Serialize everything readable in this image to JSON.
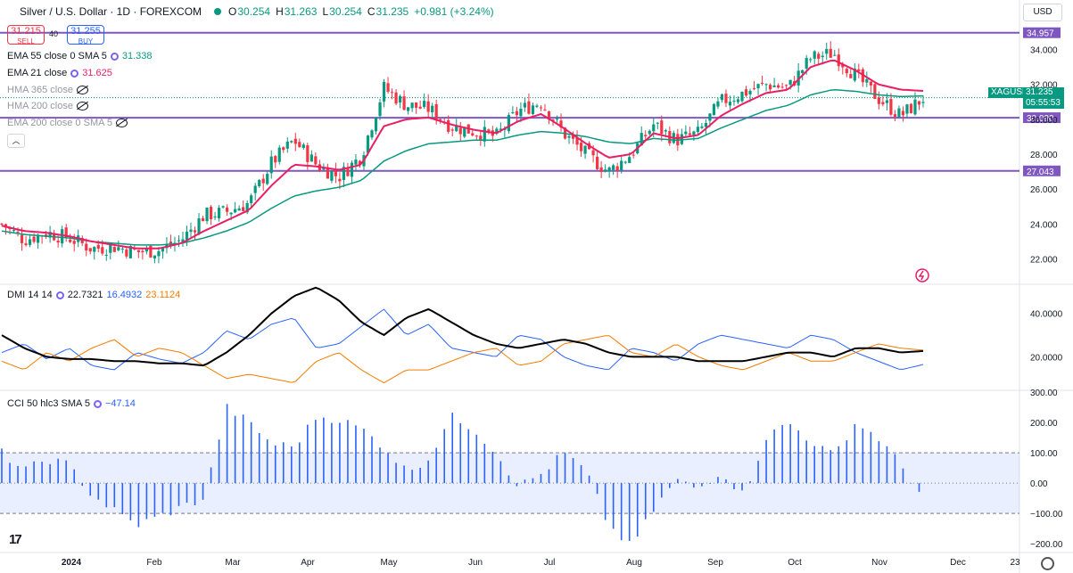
{
  "header": {
    "title": "Silver / U.S. Dollar · 1D · FOREXCOM",
    "open_label": "O",
    "open": "30.254",
    "high_label": "H",
    "high": "31.263",
    "low_label": "L",
    "low": "30.254",
    "close_label": "C",
    "close": "31.235",
    "change": "+0.981 (+3.24%)"
  },
  "trade": {
    "sell_price": "31.215",
    "sell_label": "SELL",
    "spread": "40",
    "buy_price": "31.255",
    "buy_label": "BUY"
  },
  "indicators": [
    {
      "label": "EMA 55 close 0 SMA 5",
      "value": "31.338",
      "color": "#089981",
      "visible": true
    },
    {
      "label": "EMA 21 close",
      "value": "31.625",
      "color": "#e91e63",
      "visible": true
    },
    {
      "label": "HMA 365 close",
      "value": "",
      "visible": false
    },
    {
      "label": "HMA 200 close",
      "value": "",
      "visible": false
    },
    {
      "label": "EMA 200 close 0 SMA 5",
      "value": "",
      "visible": false
    }
  ],
  "dmi": {
    "label": "DMI 14 14",
    "v1": "22.7321",
    "v2": "16.4932",
    "v3": "23.1124"
  },
  "cci": {
    "label": "CCI 50 hlc3 SMA 5",
    "value": "−47.14"
  },
  "currency": "USD",
  "symbol_tag": "XAGUSD",
  "price_tag": "31.235",
  "countdown": "05:55:53",
  "colors": {
    "up": "#089981",
    "down": "#f23645",
    "level": "#7e57c2",
    "ema21": "#e91e63",
    "ema55": "#089981",
    "dmi_plus": "#2962ff",
    "dmi_minus": "#f57c00",
    "adx": "#000000",
    "cci": "#2962ff"
  },
  "icons": {
    "logo": "tradingview-logo",
    "settings": "gear-icon",
    "collapse": "chevron-up-icon",
    "alert": "lightning-icon"
  },
  "chart_data": [
    {
      "type": "candlestick",
      "title": "Silver / U.S. Dollar · 1D · FOREXCOM",
      "x_labels": [
        "2024",
        "Feb",
        "Mar",
        "Apr",
        "May",
        "Jun",
        "Jul",
        "Aug",
        "Sep",
        "Oct",
        "Nov",
        "Dec",
        "23"
      ],
      "y_ticks": [
        "22.000",
        "24.000",
        "26.000",
        "28.000",
        "30.000",
        "32.000",
        "34.000"
      ],
      "ylim": [
        20.6,
        35.3
      ],
      "price_levels": [
        {
          "value": 34.957,
          "label": "34.957"
        },
        {
          "value": 30.09,
          "label": "30.090"
        },
        {
          "value": 27.043,
          "label": "27.043"
        }
      ],
      "last_price": 31.235,
      "close_series_weekly": [
        24.0,
        23.1,
        23.5,
        23.2,
        22.6,
        22.7,
        22.4,
        22.5,
        23.1,
        24.5,
        24.7,
        25.2,
        27.5,
        28.8,
        27.4,
        26.7,
        27.9,
        31.8,
        30.8,
        30.6,
        29.6,
        29.3,
        29.0,
        30.5,
        31.0,
        29.2,
        28.0,
        27.0,
        28.0,
        29.7,
        28.8,
        29.2,
        31.0,
        31.5,
        32.0,
        31.8,
        33.5,
        33.8,
        32.5,
        31.2,
        30.2,
        31.2
      ],
      "series": [
        {
          "name": "EMA 55 close 0 SMA 5",
          "values_weekly": [
            23.6,
            23.4,
            23.3,
            23.2,
            23.0,
            22.9,
            22.8,
            22.8,
            22.9,
            23.2,
            23.6,
            24.1,
            24.9,
            25.6,
            25.9,
            26.1,
            26.5,
            27.6,
            28.2,
            28.6,
            28.7,
            28.8,
            28.8,
            29.1,
            29.3,
            29.2,
            29.0,
            28.7,
            28.6,
            28.9,
            28.8,
            28.9,
            29.5,
            30.0,
            30.5,
            30.8,
            31.4,
            31.7,
            31.6,
            31.4,
            31.3,
            31.34
          ]
        },
        {
          "name": "EMA 21 close",
          "values_weekly": [
            23.9,
            23.6,
            23.5,
            23.3,
            23.0,
            22.8,
            22.6,
            22.6,
            22.9,
            23.6,
            24.2,
            24.8,
            26.2,
            27.4,
            27.3,
            27.1,
            27.4,
            29.6,
            30.0,
            30.1,
            29.7,
            29.4,
            29.2,
            29.9,
            30.3,
            29.5,
            28.6,
            27.8,
            28.0,
            29.2,
            28.9,
            29.1,
            30.2,
            30.9,
            31.5,
            31.7,
            33.0,
            33.4,
            32.8,
            32.0,
            31.7,
            31.625
          ]
        }
      ]
    },
    {
      "type": "line",
      "title": "DMI 14 14",
      "y_ticks": [
        "20.0000",
        "40.0000"
      ],
      "ylim": [
        5,
        53
      ],
      "series": [
        {
          "name": "+DI",
          "values_weekly": [
            22,
            26,
            19,
            24,
            16,
            14,
            22,
            19,
            17,
            22,
            32,
            28,
            35,
            38,
            24,
            26,
            34,
            42,
            30,
            35,
            24,
            22,
            20,
            30,
            28,
            20,
            16,
            14,
            24,
            22,
            18,
            26,
            30,
            28,
            26,
            24,
            30,
            28,
            22,
            18,
            14,
            16.5
          ]
        },
        {
          "name": "-DI",
          "values_weekly": [
            18,
            14,
            22,
            18,
            24,
            28,
            20,
            24,
            22,
            16,
            10,
            12,
            10,
            8,
            18,
            22,
            14,
            8,
            14,
            14,
            18,
            22,
            24,
            16,
            18,
            26,
            28,
            30,
            22,
            20,
            26,
            20,
            16,
            14,
            18,
            22,
            18,
            18,
            22,
            26,
            24,
            23.1
          ]
        },
        {
          "name": "ADX",
          "values_weekly": [
            30,
            24,
            20,
            19,
            19,
            18,
            18,
            17,
            17,
            16,
            22,
            30,
            40,
            48,
            52,
            46,
            36,
            30,
            38,
            42,
            36,
            30,
            26,
            24,
            26,
            28,
            26,
            22,
            20,
            20,
            20,
            18,
            18,
            18,
            20,
            22,
            22,
            20,
            24,
            24,
            22,
            22.7
          ]
        }
      ]
    },
    {
      "type": "bar",
      "title": "CCI 50 hlc3 SMA 5",
      "y_ticks": [
        "−200.00",
        "−100.00",
        "0.00",
        "100.00",
        "200.00",
        "300.00"
      ],
      "ylim": [
        -220,
        300
      ],
      "band": [
        -100,
        100
      ],
      "values_weekly": [
        100,
        40,
        80,
        60,
        -40,
        -90,
        -140,
        -110,
        -80,
        -50,
        250,
        200,
        130,
        120,
        220,
        210,
        180,
        120,
        40,
        80,
        220,
        180,
        100,
        -10,
        30,
        100,
        40,
        -140,
        -210,
        -90,
        10,
        -20,
        40,
        -40,
        150,
        200,
        140,
        90,
        200,
        150,
        60,
        -47
      ]
    }
  ]
}
